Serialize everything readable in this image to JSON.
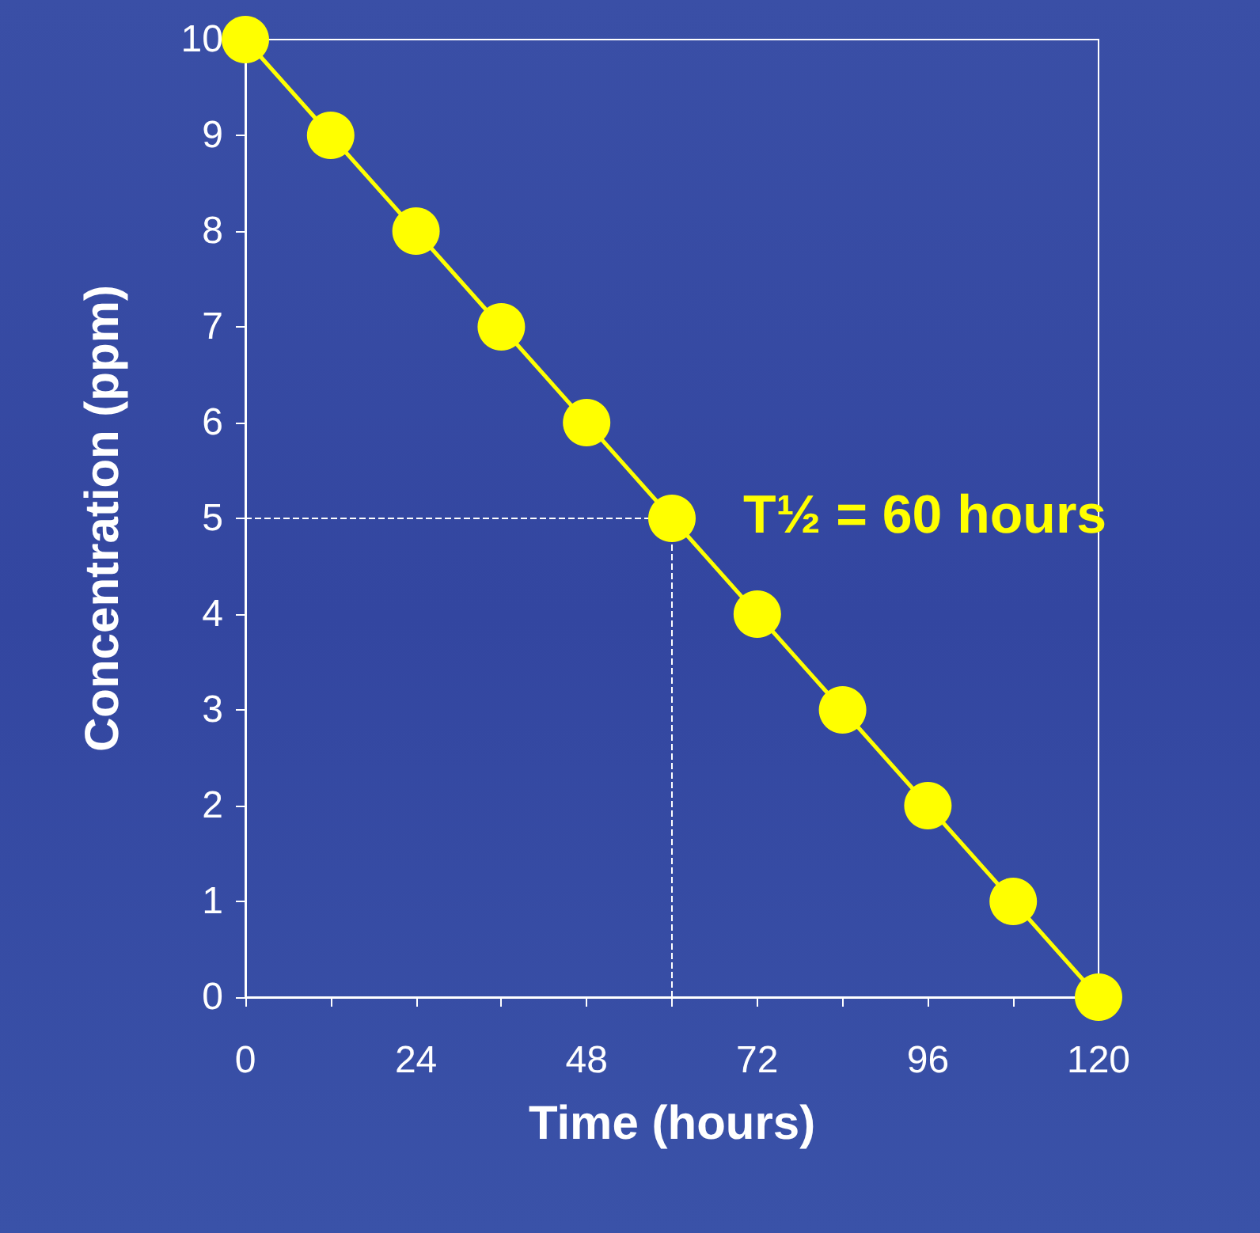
{
  "chart_data": {
    "type": "line",
    "xlabel": "Time (hours)",
    "ylabel": "Concentration (ppm)",
    "x": [
      0,
      12,
      24,
      36,
      48,
      60,
      72,
      84,
      96,
      108,
      120
    ],
    "series": [
      {
        "color": "#ffff00",
        "values": [
          10,
          9,
          8,
          7,
          6,
          5,
          4,
          3,
          2,
          1,
          0
        ]
      }
    ],
    "xlim": [
      0,
      120
    ],
    "xticks": [
      0,
      {
        "value": 12,
        "label": null
      },
      24,
      {
        "value": 36,
        "label": null
      },
      48,
      {
        "value": 60,
        "label": null
      },
      72,
      {
        "value": 84,
        "label": null
      },
      96,
      {
        "value": 108,
        "label": null
      },
      120
    ],
    "ylim": [
      0,
      10
    ],
    "yticks": [
      0,
      1,
      2,
      3,
      4,
      5,
      6,
      7,
      8,
      9,
      10
    ],
    "marker": "circle",
    "line_style": "solid",
    "grid": false,
    "ref_lines": [
      {
        "axis": "x",
        "value": 60,
        "color": "#ffffff",
        "line_style": "dashed"
      },
      {
        "axis": "y",
        "value": 5,
        "color": "#ffffff",
        "line_style": "dashed"
      }
    ],
    "annotations": [
      {
        "text": "T½ = 60 hours",
        "x": 60,
        "y": 5
      }
    ]
  }
}
